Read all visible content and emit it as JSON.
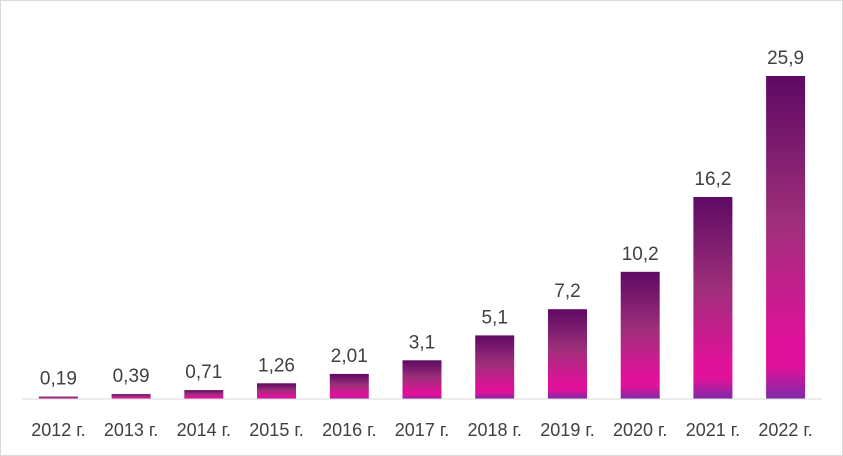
{
  "chart_data": {
    "type": "bar",
    "categories": [
      "2012 г.",
      "2013 г.",
      "2014 г.",
      "2015 г.",
      "2016 г.",
      "2017 г.",
      "2018 г.",
      "2019 г.",
      "2020 г.",
      "2021 г.",
      "2022 г."
    ],
    "values": [
      0.19,
      0.39,
      0.71,
      1.26,
      2.01,
      3.1,
      5.1,
      7.2,
      10.2,
      16.2,
      25.9
    ],
    "data_labels": [
      "0,19",
      "0,39",
      "0,71",
      "1,26",
      "2,01",
      "3,1",
      "5,1",
      "7,2",
      "10,2",
      "16,2",
      "25,9"
    ],
    "ylim": [
      0,
      25.9
    ],
    "grid": false,
    "legend": "none",
    "colors": {
      "bar_top": "#5e0a63",
      "bar_mid": "#9e2f7a",
      "bar_low": "#e0129a",
      "bar_base": "#7c2aa8",
      "axis": "#d9d9d9",
      "text": "#404040"
    }
  }
}
